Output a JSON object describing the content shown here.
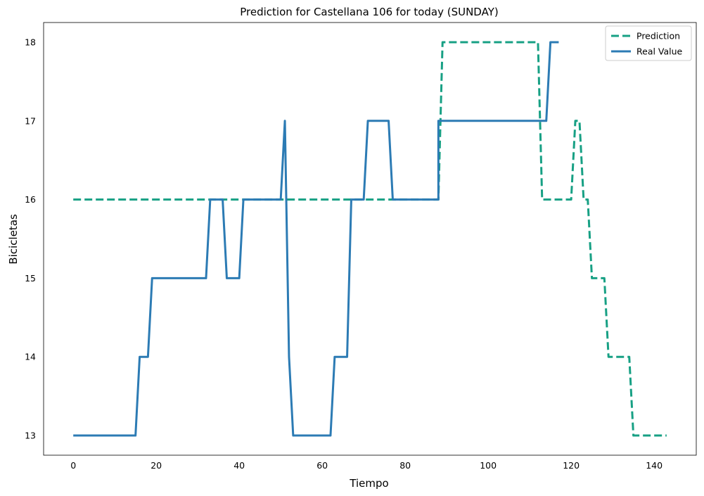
{
  "chart_data": {
    "type": "line",
    "title": "Prediction for Castellana 106 for today (SUNDAY)",
    "xlabel": "Tiempo",
    "ylabel": "Bicicletas",
    "xlim": [
      -7.15,
      150.15
    ],
    "ylim": [
      12.75,
      18.25
    ],
    "xticks": [
      0,
      20,
      40,
      60,
      80,
      100,
      120,
      140
    ],
    "yticks": [
      13,
      14,
      15,
      16,
      17,
      18
    ],
    "grid": false,
    "legend_position": "top-right",
    "series": [
      {
        "name": "Prediction",
        "color": "#17a084",
        "style": "dashed",
        "points": [
          [
            0,
            16
          ],
          [
            88,
            16
          ],
          [
            89,
            18
          ],
          [
            112,
            18
          ],
          [
            113,
            16
          ],
          [
            120,
            16
          ],
          [
            121,
            17
          ],
          [
            122,
            17
          ],
          [
            123,
            16
          ],
          [
            124,
            16
          ],
          [
            125,
            15
          ],
          [
            128,
            15
          ],
          [
            129,
            14
          ],
          [
            130,
            14
          ],
          [
            131,
            14
          ],
          [
            134,
            14
          ],
          [
            135,
            13
          ],
          [
            143,
            13
          ]
        ]
      },
      {
        "name": "Real Value",
        "color": "#2c7bb4",
        "style": "solid",
        "points": [
          [
            0,
            13
          ],
          [
            15,
            13
          ],
          [
            16,
            14
          ],
          [
            18,
            14
          ],
          [
            19,
            15
          ],
          [
            32,
            15
          ],
          [
            33,
            16
          ],
          [
            36,
            16
          ],
          [
            37,
            15
          ],
          [
            40,
            15
          ],
          [
            41,
            16
          ],
          [
            50,
            16
          ],
          [
            51,
            17
          ],
          [
            52,
            14
          ],
          [
            53,
            13
          ],
          [
            62,
            13
          ],
          [
            63,
            14
          ],
          [
            66,
            14
          ],
          [
            67,
            16
          ],
          [
            70,
            16
          ],
          [
            71,
            17
          ],
          [
            76,
            17
          ],
          [
            77,
            16
          ],
          [
            88,
            16
          ],
          [
            88,
            17
          ],
          [
            114,
            17
          ],
          [
            115,
            18
          ],
          [
            117,
            18
          ]
        ]
      }
    ]
  }
}
